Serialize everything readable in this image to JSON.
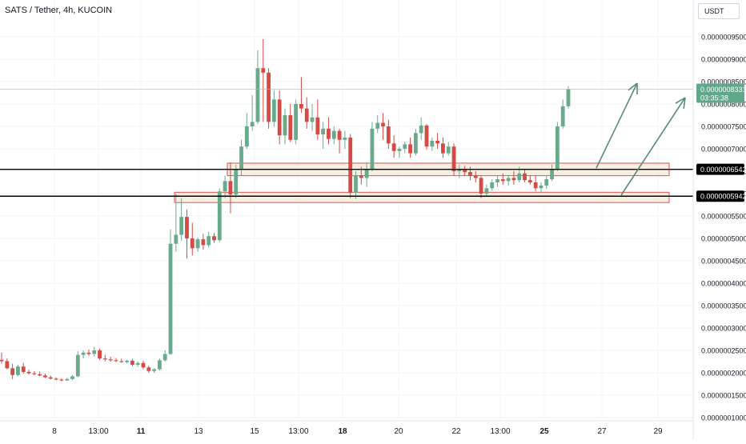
{
  "header": {
    "title": "SATS / Tether, 4h, KUCOIN",
    "currency": "USDT"
  },
  "colors": {
    "up": "#6aaa8c",
    "down": "#d44a44",
    "zone_fill": "#f5e9d9",
    "zone_stroke": "#e84d4d",
    "arrow": "#5a8a7d",
    "current_price_bg": "#5fa889",
    "level_line": "#000000"
  },
  "chart_data": {
    "type": "candlestick",
    "title": "SATS / Tether, 4h, KUCOIN",
    "y_unit": "USDT",
    "y_range": [
      1e-07,
      9.8e-07
    ],
    "y_ticks": [
      {
        "value": 1e-07,
        "label": "0.0000001000"
      },
      {
        "value": 1.5e-07,
        "label": "0.0000001500"
      },
      {
        "value": 2e-07,
        "label": "0.0000002000"
      },
      {
        "value": 2.5e-07,
        "label": "0.0000002500"
      },
      {
        "value": 3e-07,
        "label": "0.0000003000"
      },
      {
        "value": 3.5e-07,
        "label": "0.0000003500"
      },
      {
        "value": 4e-07,
        "label": "0.0000004000"
      },
      {
        "value": 4.5e-07,
        "label": "0.0000004500"
      },
      {
        "value": 5e-07,
        "label": "0.0000005000"
      },
      {
        "value": 5.5e-07,
        "label": "0.0000005500"
      },
      {
        "value": 6e-07,
        "label": "0.0000006000"
      },
      {
        "value": 6.5e-07,
        "label": "0.0000006500"
      },
      {
        "value": 7e-07,
        "label": "0.0000007000"
      },
      {
        "value": 7.5e-07,
        "label": "0.0000007500"
      },
      {
        "value": 8e-07,
        "label": "0.0000008000"
      },
      {
        "value": 8.5e-07,
        "label": "0.0000008500"
      },
      {
        "value": 9e-07,
        "label": "0.0000009000"
      },
      {
        "value": 9.5e-07,
        "label": "0.0000009500"
      }
    ],
    "x_ticks": [
      {
        "label": "8",
        "bold": false
      },
      {
        "label": "13:00",
        "bold": false
      },
      {
        "label": "11",
        "bold": true
      },
      {
        "label": "13",
        "bold": false
      },
      {
        "label": "15",
        "bold": false
      },
      {
        "label": "13:00",
        "bold": false
      },
      {
        "label": "18",
        "bold": true
      },
      {
        "label": "20",
        "bold": false
      },
      {
        "label": "22",
        "bold": false
      },
      {
        "label": "13:00",
        "bold": false
      },
      {
        "label": "25",
        "bold": true
      },
      {
        "label": "27",
        "bold": false
      },
      {
        "label": "29",
        "bold": false
      }
    ],
    "candles": [
      [
        2.29e-07,
        2.45e-07,
        2.2e-07,
        2.26e-07
      ],
      [
        2.26e-07,
        2.32e-07,
        2.08e-07,
        2.1e-07
      ],
      [
        2.1e-07,
        2.2e-07,
        1.86e-07,
        1.95e-07
      ],
      [
        1.95e-07,
        2.18e-07,
        1.92e-07,
        2.14e-07
      ],
      [
        2.14e-07,
        2.22e-07,
        1.98e-07,
        2.02e-07
      ],
      [
        2.02e-07,
        2.07e-07,
        1.96e-07,
        1.99e-07
      ],
      [
        1.99e-07,
        2.04e-07,
        1.94e-07,
        1.97e-07
      ],
      [
        1.97e-07,
        2.03e-07,
        1.92e-07,
        1.94e-07
      ],
      [
        1.94e-07,
        1.98e-07,
        1.88e-07,
        1.9e-07
      ],
      [
        1.9e-07,
        1.94e-07,
        1.85e-07,
        1.87e-07
      ],
      [
        1.87e-07,
        1.9e-07,
        1.83e-07,
        1.85e-07
      ],
      [
        1.85e-07,
        1.88e-07,
        1.81e-07,
        1.83e-07
      ],
      [
        1.83e-07,
        1.89e-07,
        1.82e-07,
        1.86e-07
      ],
      [
        1.86e-07,
        1.95e-07,
        1.84e-07,
        1.92e-07
      ],
      [
        1.92e-07,
        2.48e-07,
        1.9e-07,
        2.4e-07
      ],
      [
        2.4e-07,
        2.5e-07,
        2.32e-07,
        2.45e-07
      ],
      [
        2.45e-07,
        2.52e-07,
        2.38e-07,
        2.42e-07
      ],
      [
        2.42e-07,
        2.58e-07,
        2.36e-07,
        2.5e-07
      ],
      [
        2.5e-07,
        2.54e-07,
        2.28e-07,
        2.32e-07
      ],
      [
        2.32e-07,
        2.4e-07,
        2.26e-07,
        2.3e-07
      ],
      [
        2.3e-07,
        2.36e-07,
        2.25e-07,
        2.28e-07
      ],
      [
        2.28e-07,
        2.33e-07,
        2.24e-07,
        2.26e-07
      ],
      [
        2.26e-07,
        2.32e-07,
        2.22e-07,
        2.24e-07
      ],
      [
        2.24e-07,
        2.29e-07,
        2.21e-07,
        2.27e-07
      ],
      [
        2.27e-07,
        2.31e-07,
        2.15e-07,
        2.18e-07
      ],
      [
        2.18e-07,
        2.25e-07,
        2.13e-07,
        2.22e-07
      ],
      [
        2.22e-07,
        2.27e-07,
        2.08e-07,
        2.12e-07
      ],
      [
        2.12e-07,
        2.16e-07,
        2e-07,
        2.04e-07
      ],
      [
        2.04e-07,
        2.1e-07,
        2e-07,
        2.08e-07
      ],
      [
        2.08e-07,
        2.32e-07,
        2.05e-07,
        2.28e-07
      ],
      [
        2.28e-07,
        2.5e-07,
        2.25e-07,
        2.42e-07
      ],
      [
        2.42e-07,
        5.2e-07,
        2.4e-07,
        4.88e-07
      ],
      [
        4.88e-07,
        6e-07,
        4.7e-07,
        5.08e-07
      ],
      [
        5.08e-07,
        5.9e-07,
        4.95e-07,
        5.48e-07
      ],
      [
        5.48e-07,
        5.65e-07,
        4.55e-07,
        5e-07
      ],
      [
        5e-07,
        5.35e-07,
        4.62e-07,
        4.78e-07
      ],
      [
        4.78e-07,
        5.02e-07,
        4.7e-07,
        4.98e-07
      ],
      [
        4.98e-07,
        5.1e-07,
        4.75e-07,
        4.85e-07
      ],
      [
        4.85e-07,
        5.15e-07,
        4.8e-07,
        5.05e-07
      ],
      [
        5.05e-07,
        5.12e-07,
        4.9e-07,
        4.96e-07
      ],
      [
        4.96e-07,
        6.12e-07,
        4.92e-07,
        6.05e-07
      ],
      [
        6.05e-07,
        6.4e-07,
        5.9e-07,
        6.28e-07
      ],
      [
        6.28e-07,
        6.7e-07,
        5.56e-07,
        5.98e-07
      ],
      [
        5.98e-07,
        6.65e-07,
        5.9e-07,
        6.55e-07
      ],
      [
        6.55e-07,
        7.2e-07,
        6.4e-07,
        7.05e-07
      ],
      [
        7.05e-07,
        7.8e-07,
        7e-07,
        7.5e-07
      ],
      [
        7.5e-07,
        8.2e-07,
        7.4e-07,
        7.6e-07
      ],
      [
        7.6e-07,
        9.2e-07,
        7.55e-07,
        8.8e-07
      ],
      [
        8.8e-07,
        9.45e-07,
        7.6e-07,
        8.7e-07
      ],
      [
        8.7e-07,
        8.8e-07,
        7.45e-07,
        7.6e-07
      ],
      [
        7.6e-07,
        8.3e-07,
        7.5e-07,
        8.1e-07
      ],
      [
        8.1e-07,
        8.3e-07,
        7.1e-07,
        7.3e-07
      ],
      [
        7.3e-07,
        7.9e-07,
        7.1e-07,
        7.75e-07
      ],
      [
        7.75e-07,
        8e-07,
        7.15e-07,
        7.2e-07
      ],
      [
        7.2e-07,
        8.1e-07,
        7.1e-07,
        8e-07
      ],
      [
        8e-07,
        8.6e-07,
        7.8e-07,
        7.9e-07
      ],
      [
        7.9e-07,
        8.15e-07,
        7.45e-07,
        7.6e-07
      ],
      [
        7.6e-07,
        8e-07,
        7.4e-07,
        7.7e-07
      ],
      [
        7.7e-07,
        8.1e-07,
        7.2e-07,
        7.32e-07
      ],
      [
        7.32e-07,
        7.6e-07,
        7e-07,
        7.45e-07
      ],
      [
        7.45e-07,
        7.7e-07,
        7.1e-07,
        7.22e-07
      ],
      [
        7.22e-07,
        7.5e-07,
        7.1e-07,
        7.4e-07
      ],
      [
        7.4e-07,
        7.45e-07,
        6.9e-07,
        7.2e-07
      ],
      [
        7.2e-07,
        7.4e-07,
        7e-07,
        7.25e-07
      ],
      [
        7.25e-07,
        7.33e-07,
        5.9e-07,
        6.02e-07
      ],
      [
        6.02e-07,
        6.5e-07,
        5.88e-07,
        6.4e-07
      ],
      [
        6.4e-07,
        6.6e-07,
        6.2e-07,
        6.35e-07
      ],
      [
        6.35e-07,
        6.7e-07,
        6.15e-07,
        6.55e-07
      ],
      [
        6.55e-07,
        7.6e-07,
        6.5e-07,
        7.45e-07
      ],
      [
        7.45e-07,
        7.75e-07,
        7.35e-07,
        7.58e-07
      ],
      [
        7.58e-07,
        7.8e-07,
        7.2e-07,
        7.5e-07
      ],
      [
        7.5e-07,
        7.65e-07,
        7e-07,
        7.12e-07
      ],
      [
        7.12e-07,
        7.3e-07,
        6.8e-07,
        6.95e-07
      ],
      [
        6.95e-07,
        7.05e-07,
        6.8e-07,
        7e-07
      ],
      [
        7e-07,
        7.16e-07,
        6.9e-07,
        7.1e-07
      ],
      [
        7.1e-07,
        7.25e-07,
        6.8e-07,
        6.9e-07
      ],
      [
        6.9e-07,
        7.45e-07,
        6.85e-07,
        7.35e-07
      ],
      [
        7.35e-07,
        7.7e-07,
        7.2e-07,
        7.52e-07
      ],
      [
        7.52e-07,
        7.55e-07,
        6.98e-07,
        7.05e-07
      ],
      [
        7.05e-07,
        7.25e-07,
        6.95e-07,
        7.18e-07
      ],
      [
        7.18e-07,
        7.35e-07,
        7e-07,
        7.12e-07
      ],
      [
        7.12e-07,
        7.25e-07,
        6.8e-07,
        6.9e-07
      ],
      [
        6.9e-07,
        7.15e-07,
        6.85e-07,
        7.05e-07
      ],
      [
        7.05e-07,
        7.12e-07,
        6.4e-07,
        6.5e-07
      ],
      [
        6.5e-07,
        6.65e-07,
        6.35e-07,
        6.55e-07
      ],
      [
        6.55e-07,
        6.62e-07,
        6.4e-07,
        6.48e-07
      ],
      [
        6.48e-07,
        6.6e-07,
        6.3e-07,
        6.4e-07
      ],
      [
        6.4e-07,
        6.5e-07,
        6.25e-07,
        6.35e-07
      ],
      [
        6.35e-07,
        6.4e-07,
        5.9e-07,
        6e-07
      ],
      [
        6e-07,
        6.2e-07,
        5.95e-07,
        6.12e-07
      ],
      [
        6.12e-07,
        6.32e-07,
        6.06e-07,
        6.25e-07
      ],
      [
        6.25e-07,
        6.4e-07,
        6.15e-07,
        6.32e-07
      ],
      [
        6.32e-07,
        6.45e-07,
        6.2e-07,
        6.28e-07
      ],
      [
        6.28e-07,
        6.42e-07,
        6.18e-07,
        6.35e-07
      ],
      [
        6.35e-07,
        6.5e-07,
        6.2e-07,
        6.3e-07
      ],
      [
        6.3e-07,
        6.6e-07,
        6.25e-07,
        6.45e-07
      ],
      [
        6.45e-07,
        6.55e-07,
        6.25e-07,
        6.3e-07
      ],
      [
        6.3e-07,
        6.4e-07,
        6.2e-07,
        6.25e-07
      ],
      [
        6.25e-07,
        6.4e-07,
        6.05e-07,
        6.12e-07
      ],
      [
        6.12e-07,
        6.25e-07,
        6.02e-07,
        6.18e-07
      ],
      [
        6.18e-07,
        6.4e-07,
        6.1e-07,
        6.32e-07
      ],
      [
        6.32e-07,
        6.65e-07,
        6.28e-07,
        6.55e-07
      ],
      [
        6.55e-07,
        7.6e-07,
        6.5e-07,
        7.5e-07
      ],
      [
        7.5e-07,
        8.1e-07,
        7.45e-07,
        7.95e-07
      ],
      [
        7.95e-07,
        8.4e-07,
        7.9e-07,
        8.33e-07
      ]
    ],
    "zones": [
      {
        "top": 6.68e-07,
        "bottom": 6.4e-07
      },
      {
        "top": 6.03e-07,
        "bottom": 5.8e-07
      }
    ],
    "levels": [
      {
        "value": 6.542e-07,
        "label": "0.0000006542"
      },
      {
        "value": 5.942e-07,
        "label": "0.0000005942"
      }
    ],
    "current_price": {
      "value": 8.331e-07,
      "label": "0.0000008331",
      "countdown": "03:35:38"
    }
  }
}
